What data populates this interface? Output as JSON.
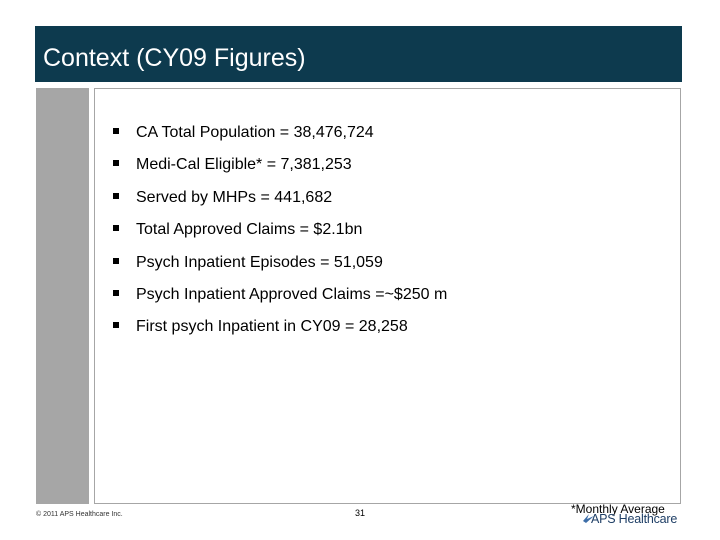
{
  "slide": {
    "title": "Context (CY09 Figures)",
    "bullets": [
      {
        "text": "CA Total Population = 38,476,724"
      },
      {
        "text": "Medi-Cal Eligible* = 7,381,253"
      },
      {
        "text": "Served by MHPs = 441,682"
      },
      {
        "text": "Total Approved Claims = $2.1bn"
      },
      {
        "text": "Psych Inpatient Episodes = 51,059"
      },
      {
        "text": "Psych Inpatient Approved Claims =~$250 m"
      },
      {
        "text": "First psych Inpatient in CY09 = 28,258"
      }
    ],
    "footnote": "*Monthly Average",
    "page_number": "31",
    "copyright": "© 2011 APS Healthcare Inc.",
    "logo_text": "APS Healthcare",
    "colors": {
      "title_bar": "#0d3a4e",
      "side_bar": "#a6a6a6",
      "logo": "#1f3f66"
    }
  }
}
